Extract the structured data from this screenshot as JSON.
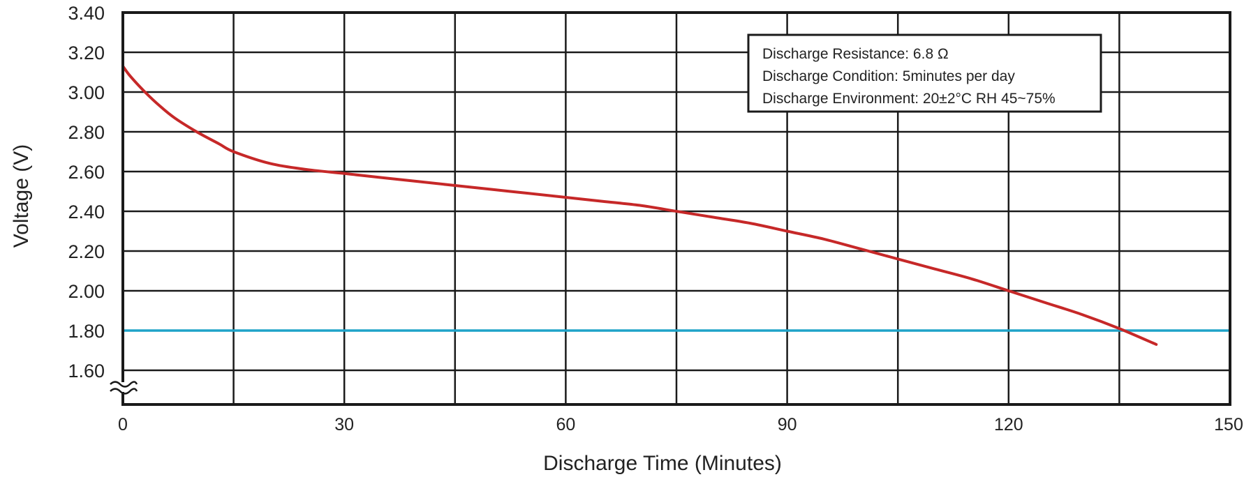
{
  "chart_data": {
    "type": "line",
    "title": "",
    "xlabel": "Discharge Time (Minutes)",
    "ylabel": "Voltage (V)",
    "xlim": [
      0,
      150
    ],
    "ylim": [
      1.6,
      3.4
    ],
    "y_axis_break": true,
    "x_ticks": [
      0,
      30,
      60,
      90,
      120,
      150
    ],
    "x_tick_labels": [
      "0",
      "30",
      "60",
      "90",
      "120",
      "150"
    ],
    "x_grid": [
      15,
      30,
      45,
      60,
      75,
      90,
      105,
      120,
      135
    ],
    "y_ticks": [
      1.6,
      1.8,
      2.0,
      2.2,
      2.4,
      2.6,
      2.8,
      3.0,
      3.2,
      3.4
    ],
    "y_tick_labels": [
      "1.60",
      "1.80",
      "2.00",
      "2.20",
      "2.40",
      "2.60",
      "2.80",
      "3.00",
      "3.20",
      "3.40"
    ],
    "grid": true,
    "series": [
      {
        "color": "#c62828",
        "x": [
          0,
          1,
          3,
          5,
          7,
          10,
          13,
          15,
          20,
          25,
          30,
          35,
          40,
          45,
          50,
          55,
          60,
          65,
          70,
          75,
          80,
          85,
          90,
          95,
          100,
          105,
          110,
          115,
          120,
          125,
          130,
          135,
          140
        ],
        "y": [
          3.13,
          3.08,
          3.0,
          2.93,
          2.87,
          2.8,
          2.74,
          2.7,
          2.64,
          2.61,
          2.59,
          2.57,
          2.55,
          2.53,
          2.51,
          2.49,
          2.47,
          2.45,
          2.43,
          2.4,
          2.37,
          2.34,
          2.3,
          2.26,
          2.21,
          2.16,
          2.11,
          2.06,
          2.0,
          1.94,
          1.88,
          1.81,
          1.73
        ]
      }
    ],
    "reference_lines": [
      {
        "axis": "y",
        "value": 1.8,
        "color": "#1fa3c8"
      }
    ],
    "annotation": {
      "placement": "top-right",
      "lines": [
        "Discharge Resistance: 6.8 Ω",
        "Discharge Condition:  5minutes per day",
        "Discharge Environment: 20±2°C  RH 45~75%"
      ]
    }
  }
}
